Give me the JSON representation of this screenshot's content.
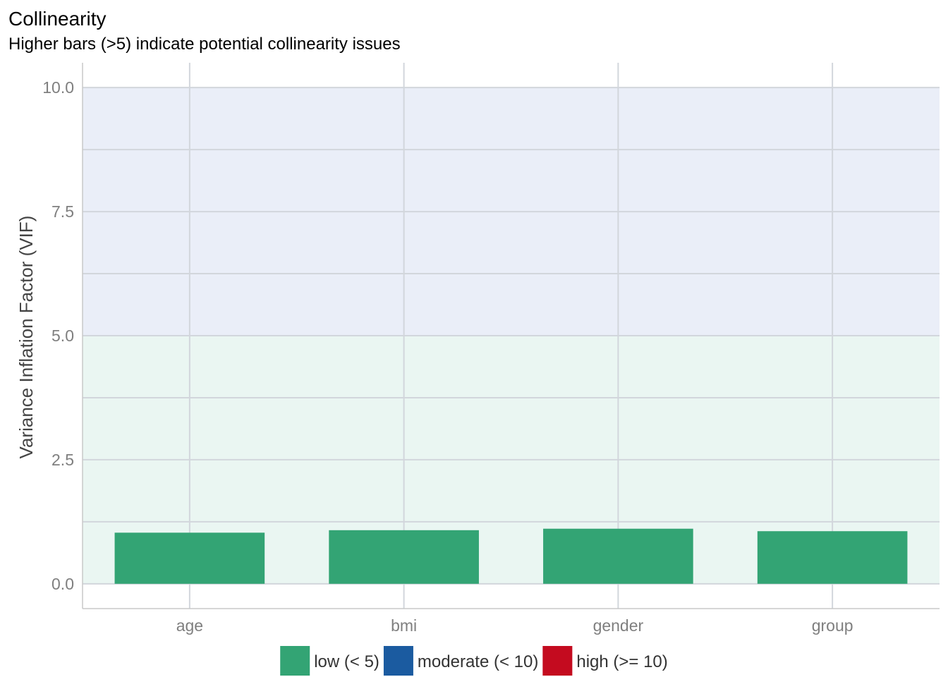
{
  "chart_data": {
    "type": "bar",
    "title": "Collinearity",
    "subtitle": "Higher bars (>5) indicate potential collinearity issues",
    "xlabel": "",
    "ylabel": "Variance Inflation Factor (VIF)",
    "categories": [
      "age",
      "bmi",
      "gender",
      "group"
    ],
    "values": [
      1.03,
      1.08,
      1.11,
      1.06
    ],
    "ylim": [
      -0.5,
      10.5
    ],
    "yticks": [
      "0.0",
      "2.5",
      "5.0",
      "7.5",
      "10.0"
    ],
    "ytick_values": [
      0,
      2.5,
      5,
      7.5,
      10
    ],
    "grid": true,
    "bands": [
      {
        "from": 0,
        "to": 5,
        "color": "#eaf6f2"
      },
      {
        "from": 5,
        "to": 10,
        "color": "#eaeef8"
      }
    ],
    "bar_color": "#33a474",
    "legend_position": "bottom",
    "legend": [
      {
        "label": "low (< 5)",
        "color": "#33a474"
      },
      {
        "label": "moderate (< 10)",
        "color": "#1b5ba0"
      },
      {
        "label": "high (>= 10)",
        "color": "#c40b1f"
      }
    ]
  }
}
